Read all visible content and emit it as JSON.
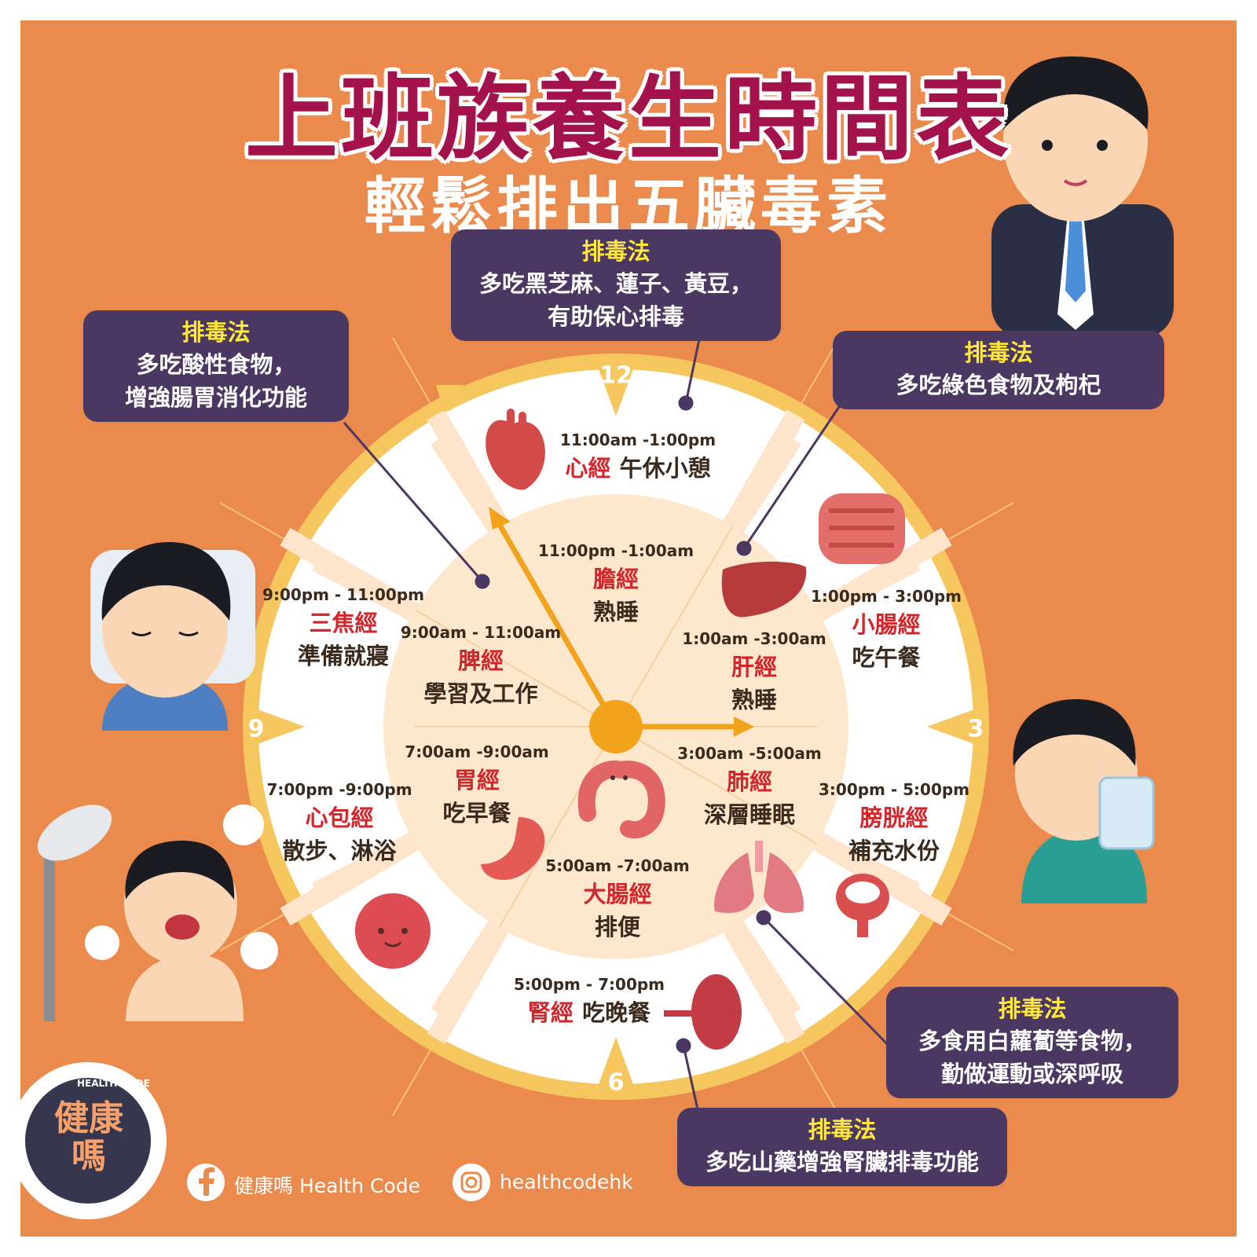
{
  "title": "上班族養生時間表",
  "subtitle": "輕鬆排出五臟毒素",
  "clock_numbers": {
    "n12": "12",
    "n3": "3",
    "n6": "6",
    "n9": "9"
  },
  "outer_segments": [
    {
      "time": "11:00am -1:00pm",
      "meridian": "心經",
      "activity": "午休小憩",
      "organ": "heart-icon"
    },
    {
      "time": "1:00pm - 3:00pm",
      "meridian": "小腸經",
      "activity": "吃午餐",
      "organ": "small-intestine-icon"
    },
    {
      "time": "3:00pm - 5:00pm",
      "meridian": "膀胱經",
      "activity": "補充水份",
      "organ": "bladder-icon"
    },
    {
      "time": "5:00pm - 7:00pm",
      "meridian": "腎經",
      "activity": "吃晚餐",
      "organ": "kidney-icon"
    },
    {
      "time": "7:00pm -9:00pm",
      "meridian": "心包經",
      "activity": "散步、淋浴",
      "organ": "pericardium-icon"
    },
    {
      "time": "9:00pm - 11:00pm",
      "meridian": "三焦經",
      "activity": "準備就寢",
      "organ": ""
    }
  ],
  "inner_segments": [
    {
      "time": "11:00pm -1:00am",
      "meridian": "膽經",
      "activity": "熟睡"
    },
    {
      "time": "1:00am -3:00am",
      "meridian": "肝經",
      "activity": "熟睡",
      "organ": "liver-icon"
    },
    {
      "time": "3:00am -5:00am",
      "meridian": "肺經",
      "activity": "深層睡眠",
      "organ": "lungs-icon"
    },
    {
      "time": "5:00am -7:00am",
      "meridian": "大腸經",
      "activity": "排便",
      "organ": "large-intestine-icon"
    },
    {
      "time": "7:00am -9:00am",
      "meridian": "胃經",
      "activity": "吃早餐",
      "organ": "stomach-icon"
    },
    {
      "time": "9:00am - 11:00am",
      "meridian": "脾經",
      "activity": "學習及工作"
    }
  ],
  "callouts": {
    "heading": "排毒法",
    "heart": [
      "多吃黑芝麻、蓮子、黃豆，",
      "有助保心排毒"
    ],
    "spleen": [
      "多吃酸性食物，",
      "增強腸胃消化功能"
    ],
    "liver": [
      "多吃綠色食物及枸杞"
    ],
    "lung": [
      "多食用白蘿蔔等食物，",
      "勤做運動或深呼吸"
    ],
    "kidney": [
      "多吃山藥增強腎臟排毒功能"
    ]
  },
  "footer": {
    "facebook": "健康嗎 Health Code",
    "instagram": "healthcodehk",
    "logo_main": "健康嗎",
    "logo_arc": "HEALTH CODE"
  },
  "colors": {
    "background": "#ea8a4c",
    "title": "#a3124b",
    "callout": "#4b3862",
    "callout_heading": "#ffe83a",
    "meridian": "#d1262c",
    "ring": "#f7c75f",
    "inner": "#fde8cd",
    "hand": "#f2a31c"
  }
}
